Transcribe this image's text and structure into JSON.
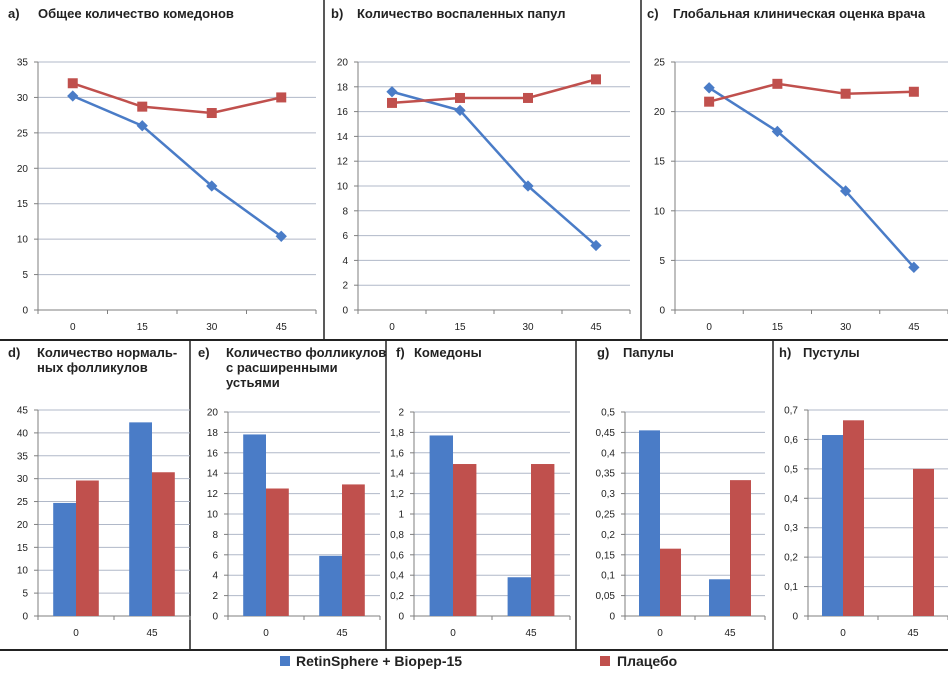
{
  "colors": {
    "series_a": "#4a7cc7",
    "series_b": "#c0504d",
    "grid": "#b0b8c8",
    "axis": "#7f7f7f",
    "frame": "#222222"
  },
  "legend": {
    "items": [
      {
        "label": "RetinSphere + Biopep-15"
      },
      {
        "label": "Плацебо"
      }
    ]
  },
  "chart_data": [
    {
      "id": "a",
      "letter": "a)",
      "type": "line",
      "title": "Общее количество комедонов",
      "categories": [
        "0",
        "15",
        "30",
        "45"
      ],
      "ylim": [
        0,
        35
      ],
      "ystep": 5,
      "ytick_labels": [
        "0",
        "5",
        "10",
        "15",
        "20",
        "25",
        "30",
        "35"
      ],
      "series": [
        {
          "values": [
            30.2,
            26.0,
            17.5,
            10.4
          ]
        },
        {
          "values": [
            32.0,
            28.7,
            27.8,
            30.0
          ]
        }
      ]
    },
    {
      "id": "b",
      "letter": "b)",
      "type": "line",
      "title": "Количество воспаленных папул",
      "categories": [
        "0",
        "15",
        "30",
        "45"
      ],
      "ylim": [
        0,
        20
      ],
      "ystep": 2,
      "ytick_labels": [
        "0",
        "2",
        "4",
        "6",
        "8",
        "10",
        "12",
        "14",
        "16",
        "18",
        "20"
      ],
      "series": [
        {
          "values": [
            17.6,
            16.1,
            10.0,
            5.2
          ]
        },
        {
          "values": [
            16.7,
            17.1,
            17.1,
            18.6
          ]
        }
      ]
    },
    {
      "id": "c",
      "letter": "c)",
      "type": "line",
      "title": "Глобальная клиническая оценка врача",
      "categories": [
        "0",
        "15",
        "30",
        "45"
      ],
      "ylim": [
        0,
        25
      ],
      "ystep": 5,
      "ytick_labels": [
        "0",
        "5",
        "10",
        "15",
        "20",
        "25"
      ],
      "series": [
        {
          "values": [
            22.4,
            18.0,
            12.0,
            4.3
          ]
        },
        {
          "values": [
            21.0,
            22.8,
            21.8,
            22.0
          ]
        }
      ]
    },
    {
      "id": "d",
      "letter": "d)",
      "type": "bar",
      "title": "Количество нормаль-",
      "title2": "ных фолликулов",
      "categories": [
        "0",
        "45"
      ],
      "ylim": [
        0,
        45
      ],
      "ystep": 5,
      "ytick_labels": [
        "0",
        "5",
        "10",
        "15",
        "20",
        "25",
        "30",
        "35",
        "40",
        "45"
      ],
      "series": [
        {
          "values": [
            24.7,
            42.3
          ]
        },
        {
          "values": [
            29.6,
            31.4
          ]
        }
      ]
    },
    {
      "id": "e",
      "letter": "e)",
      "type": "bar",
      "title": "Количество фолликулов",
      "title2": "с расширенными",
      "title3": "устьями",
      "categories": [
        "0",
        "45"
      ],
      "ylim": [
        0,
        20
      ],
      "ystep": 2,
      "ytick_labels": [
        "0",
        "2",
        "4",
        "6",
        "8",
        "10",
        "12",
        "14",
        "16",
        "18",
        "20"
      ],
      "series": [
        {
          "values": [
            17.8,
            5.9
          ]
        },
        {
          "values": [
            12.5,
            12.9
          ]
        }
      ]
    },
    {
      "id": "f",
      "letter": "f)",
      "type": "bar",
      "title": "Комедоны",
      "categories": [
        "0",
        "45"
      ],
      "ylim": [
        0,
        2
      ],
      "ystep": 0.2,
      "ytick_labels": [
        "0",
        "0,2",
        "0,4",
        "0,6",
        "0,8",
        "1",
        "1,2",
        "1,4",
        "1,6",
        "1,8",
        "2"
      ],
      "series": [
        {
          "values": [
            1.77,
            0.38
          ]
        },
        {
          "values": [
            1.49,
            1.49
          ]
        }
      ]
    },
    {
      "id": "g",
      "letter": "g)",
      "type": "bar",
      "title": "Папулы",
      "categories": [
        "0",
        "45"
      ],
      "ylim": [
        0,
        0.5
      ],
      "ystep": 0.05,
      "ytick_labels": [
        "0",
        "0,05",
        "0,1",
        "0,15",
        "0,2",
        "0,25",
        "0,3",
        "0,35",
        "0,4",
        "0,45",
        "0,5"
      ],
      "series": [
        {
          "values": [
            0.455,
            0.09
          ]
        },
        {
          "values": [
            0.165,
            0.333
          ]
        }
      ]
    },
    {
      "id": "h",
      "letter": "h)",
      "type": "bar",
      "title": "Пустулы",
      "categories": [
        "0",
        "45"
      ],
      "ylim": [
        0,
        0.7
      ],
      "ystep": 0.1,
      "ytick_labels": [
        "0",
        "0,1",
        "0,2",
        "0,3",
        "0,4",
        "0,5",
        "0,6",
        "0,7"
      ],
      "series": [
        {
          "values": [
            0.615,
            0
          ]
        },
        {
          "values": [
            0.665,
            0.5
          ]
        }
      ]
    }
  ]
}
